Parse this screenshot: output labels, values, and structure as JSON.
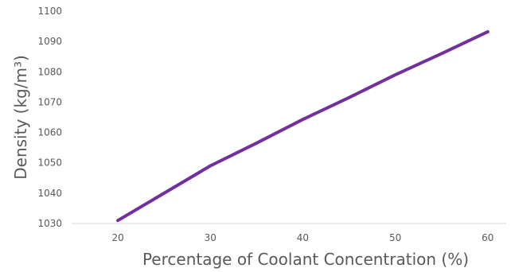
{
  "chart_data": {
    "type": "line",
    "title": "",
    "xlabel": "Percentage of Coolant Concentration (%)",
    "ylabel": "Density (kg/m³)",
    "x": [
      20,
      25,
      30,
      35,
      40,
      45,
      50,
      55,
      60
    ],
    "series": [
      {
        "values": [
          1031,
          1040,
          1049,
          1056.5,
          1064.3,
          1071.5,
          1079,
          1086,
          1093.2
        ],
        "color": "#7030A0"
      }
    ],
    "xticks": [
      20,
      30,
      40,
      50,
      60
    ],
    "yticks": [
      1030,
      1040,
      1050,
      1060,
      1070,
      1080,
      1090,
      1100
    ],
    "xlim": [
      15,
      62
    ],
    "ylim": [
      1030,
      1100
    ],
    "grid": false,
    "legend": "none"
  }
}
